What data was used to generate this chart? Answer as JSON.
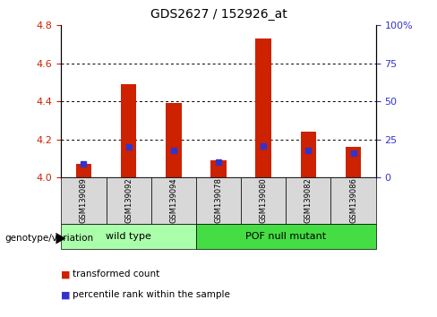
{
  "title": "GDS2627 / 152926_at",
  "samples": [
    "GSM139089",
    "GSM139092",
    "GSM139094",
    "GSM139078",
    "GSM139080",
    "GSM139082",
    "GSM139086"
  ],
  "transformed_count": [
    4.07,
    4.49,
    4.39,
    4.09,
    4.73,
    4.24,
    4.16
  ],
  "percentile_rank": [
    9,
    20,
    18,
    10,
    21,
    18,
    16
  ],
  "ylim_left": [
    4.0,
    4.8
  ],
  "ylim_right": [
    0,
    100
  ],
  "yticks_left": [
    4.0,
    4.2,
    4.4,
    4.6,
    4.8
  ],
  "yticks_right": [
    0,
    25,
    50,
    75,
    100
  ],
  "grid_lines": [
    4.2,
    4.4,
    4.6
  ],
  "bar_color": "#CC2200",
  "blue_color": "#3333CC",
  "bar_bottom": 4.0,
  "bar_width": 0.35,
  "groups": [
    {
      "label": "wild type",
      "indices": [
        0,
        1,
        2
      ],
      "color": "#AAFFAA"
    },
    {
      "label": "POF null mutant",
      "indices": [
        3,
        4,
        5,
        6
      ],
      "color": "#44DD44"
    }
  ],
  "genotype_label": "genotype/variation",
  "legend_items": [
    {
      "color": "#CC2200",
      "label": "transformed count"
    },
    {
      "color": "#3333CC",
      "label": "percentile rank within the sample"
    }
  ],
  "tick_color_left": "#CC2200",
  "tick_color_right": "#3333CC",
  "sample_bg_color": "#D8D8D8",
  "blue_marker_size": 4,
  "blue_marker_percentiles": [
    9,
    20,
    18,
    10,
    21,
    18,
    16
  ]
}
